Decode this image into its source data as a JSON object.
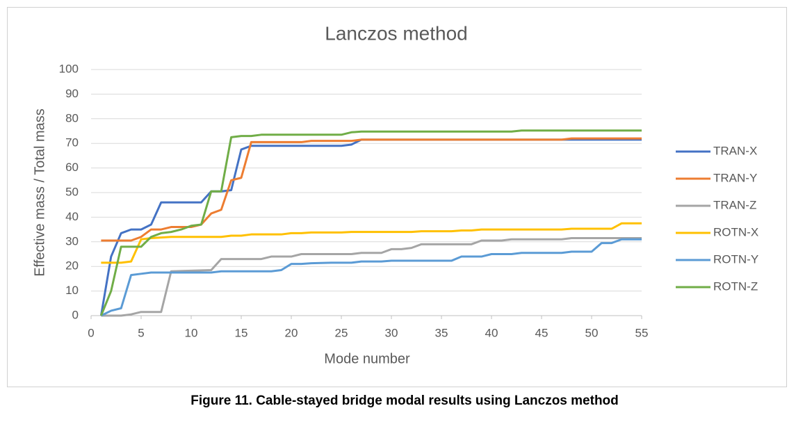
{
  "chart_data": {
    "type": "line",
    "title": "Lanczos method",
    "xlabel": "Mode number",
    "ylabel": "Effective mass / Total mass",
    "caption": "Figure 11. Cable-stayed bridge modal results using Lanczos method",
    "xlim": [
      0,
      55
    ],
    "xticks": [
      0,
      5,
      10,
      15,
      20,
      25,
      30,
      35,
      40,
      45,
      50,
      55
    ],
    "ylim": [
      0,
      100
    ],
    "yticks": [
      0,
      10,
      20,
      30,
      40,
      50,
      60,
      70,
      80,
      90,
      100
    ],
    "grid": true,
    "legend": "right",
    "series": [
      {
        "name": "TRAN-X",
        "color": "#4472c4",
        "x": [
          1,
          2,
          3,
          4,
          5,
          6,
          7,
          8,
          11,
          12,
          13,
          14,
          15,
          16,
          25,
          26,
          27,
          55
        ],
        "values": [
          0,
          24,
          33.5,
          35,
          35,
          37,
          46,
          46,
          46,
          50.5,
          50.5,
          51,
          67.5,
          69,
          69,
          69.5,
          71.5,
          71.5
        ]
      },
      {
        "name": "TRAN-Y",
        "color": "#ed7d31",
        "x": [
          1,
          4,
          5,
          6,
          7,
          8,
          10,
          11,
          12,
          13,
          14,
          15,
          16,
          21,
          22,
          26,
          27,
          47,
          48,
          55
        ],
        "values": [
          30.5,
          30.5,
          32,
          35,
          35,
          36,
          36,
          37,
          41.5,
          43,
          55,
          56,
          70.5,
          70.5,
          71,
          71,
          71.5,
          71.5,
          72,
          72
        ]
      },
      {
        "name": "TRAN-Z",
        "color": "#a5a5a5",
        "x": [
          1,
          3,
          4,
          5,
          7,
          8,
          12,
          13,
          17,
          18,
          20,
          21,
          26,
          27,
          29,
          30,
          31,
          32,
          33,
          38,
          39,
          41,
          42,
          47,
          48,
          55
        ],
        "values": [
          0,
          0,
          0.5,
          1.5,
          1.5,
          18,
          18.5,
          23,
          23,
          24,
          24,
          25,
          25,
          25.5,
          25.5,
          27,
          27,
          27.5,
          29,
          29,
          30.5,
          30.5,
          31,
          31,
          31.5,
          31.5
        ]
      },
      {
        "name": "ROTN-X",
        "color": "#ffc000",
        "x": [
          1,
          3,
          4,
          5,
          6,
          8,
          13,
          14,
          15,
          16,
          19,
          20,
          21,
          22,
          25,
          26,
          32,
          33,
          36,
          37,
          38,
          39,
          47,
          48,
          52,
          53,
          55
        ],
        "values": [
          21.5,
          21.5,
          22,
          31,
          31.5,
          32,
          32,
          32.5,
          32.5,
          33,
          33,
          33.5,
          33.5,
          33.8,
          33.8,
          34,
          34,
          34.3,
          34.3,
          34.6,
          34.6,
          35,
          35,
          35.3,
          35.3,
          37.5,
          37.5
        ]
      },
      {
        "name": "ROTN-Y",
        "color": "#5b9bd5",
        "x": [
          1,
          2,
          3,
          4,
          5,
          6,
          12,
          13,
          18,
          19,
          20,
          21,
          22,
          24,
          26,
          27,
          29,
          30,
          36,
          37,
          39,
          40,
          42,
          43,
          47,
          48,
          50,
          51,
          52,
          53,
          55
        ],
        "values": [
          0,
          2,
          3,
          16.5,
          17,
          17.5,
          17.5,
          18,
          18,
          18.5,
          21,
          21,
          21.3,
          21.5,
          21.5,
          22,
          22,
          22.3,
          22.3,
          24,
          24,
          25,
          25,
          25.5,
          25.5,
          26,
          26,
          29.5,
          29.5,
          31,
          31
        ]
      },
      {
        "name": "ROTN-Z",
        "color": "#70ad47",
        "x": [
          1,
          2,
          3,
          5,
          6,
          7,
          8,
          9,
          10,
          11,
          12,
          13,
          14,
          15,
          16,
          17,
          25,
          26,
          27,
          42,
          43,
          55
        ],
        "values": [
          0,
          10,
          28,
          28,
          32,
          33.5,
          34,
          35,
          36.5,
          37,
          50.5,
          50.5,
          72.5,
          73,
          73,
          73.5,
          73.5,
          74.5,
          74.8,
          74.8,
          75.2,
          75.2
        ]
      }
    ]
  }
}
